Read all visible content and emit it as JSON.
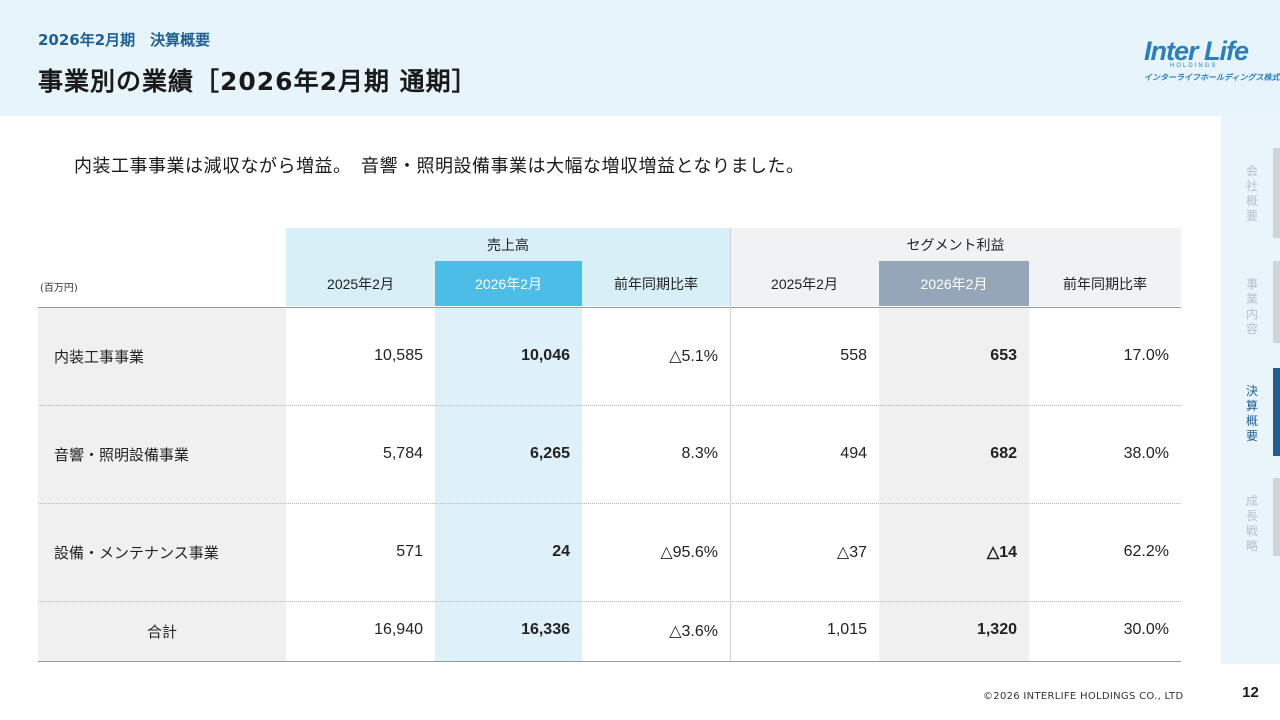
{
  "header": {
    "subtitle": "2026年2月期　決算概要",
    "title": "事業別の業績［2026年2月期 通期］"
  },
  "logo": {
    "main": "Inter Life",
    "small": "HOLDINGS",
    "kana": "インターライフホールディングス株式会社",
    "brand_color": "#2a7fc0"
  },
  "lead": "内装工事事業は減収ながら増益。　音響・照明設備事業は大幅な増収増益となりました。",
  "table": {
    "unit": "(百万円)",
    "groups": [
      "売上高",
      "セグメント利益"
    ],
    "columns": [
      "2025年2月",
      "2026年2月",
      "前年同期比率",
      "2025年2月",
      "2026年2月",
      "前年同期比率"
    ],
    "rows": [
      {
        "label": "内装工事事業",
        "values": [
          "10,585",
          "10,046",
          "△5.1%",
          "558",
          "653",
          "17.0%"
        ]
      },
      {
        "label": "音響・照明設備事業",
        "values": [
          "5,784",
          "6,265",
          "8.3%",
          "494",
          "682",
          "38.0%"
        ]
      },
      {
        "label": "設備・メンテナンス事業",
        "values": [
          "571",
          "24",
          "△95.6%",
          "△37",
          "△14",
          "62.2%"
        ]
      },
      {
        "label": "合計",
        "values": [
          "16,940",
          "16,336",
          "△3.6%",
          "1,015",
          "1,320",
          "30.0%"
        ]
      }
    ],
    "colors": {
      "sales_header": "#d9eff8",
      "sales_highlight_header": "#4bbde6",
      "sales_highlight_col": "#def1fa",
      "profit_header": "#f0f2f4",
      "profit_highlight_header": "#95a6b8",
      "profit_highlight_col": "#f0f0f0",
      "label_col": "#f0f0f0"
    }
  },
  "nav": {
    "items": [
      {
        "label": "会社概要",
        "active": false
      },
      {
        "label": "事業内容",
        "active": false
      },
      {
        "label": "決算概要",
        "active": true
      },
      {
        "label": "成長戦略",
        "active": false
      }
    ]
  },
  "footer": {
    "copyright": "©2026 INTERLIFE HOLDINGS CO., LTD",
    "page": "12"
  }
}
